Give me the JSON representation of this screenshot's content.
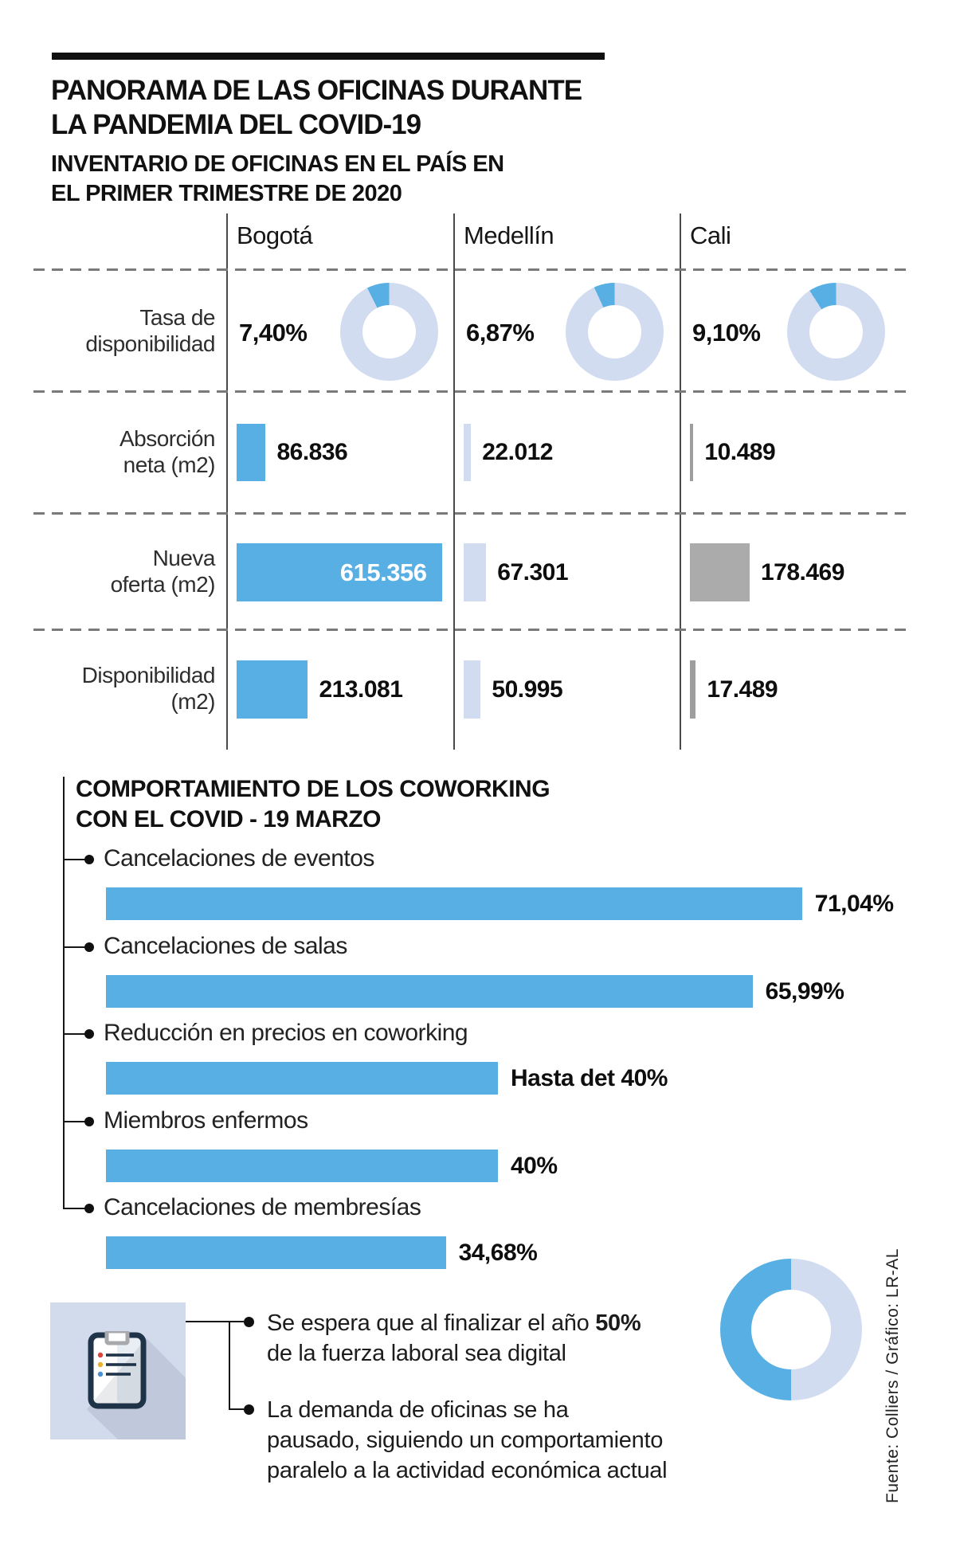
{
  "colors": {
    "blue": "#57AFE4",
    "light_blue": "#D2DCF1",
    "gray_bar": "#ABABAB",
    "gray_thin": "#9E9E9E",
    "dash": "#7A7A7A",
    "box_bg": "#D2DBEC"
  },
  "header": {
    "title": [
      "PANORAMA DE LAS OFICINAS DURANTE",
      "LA PANDEMIA DEL COVID-19"
    ],
    "subtitle": [
      "INVENTARIO DE OFICINAS EN EL PAÍS EN",
      "EL PRIMER TRIMESTRE DE 2020"
    ]
  },
  "inventory": {
    "columns": [
      "Bogotá",
      "Medellín",
      "Cali"
    ],
    "rows": [
      {
        "label": [
          "Tasa de",
          "disponibilidad"
        ],
        "display": [
          "7,40%",
          "6,87%",
          "9,10%"
        ],
        "pct": [
          7.4,
          6.87,
          9.1
        ]
      },
      {
        "label": [
          "Absorción",
          "neta (m2)"
        ],
        "display": [
          "86.836",
          "22.012",
          "10.489"
        ],
        "values": [
          86836,
          22012,
          10489
        ]
      },
      {
        "label": [
          "Nueva",
          "oferta (m2)"
        ],
        "display": [
          "615.356",
          "67.301",
          "178.469"
        ],
        "values": [
          615356,
          67301,
          178469
        ]
      },
      {
        "label": [
          "Disponibilidad",
          "(m2)"
        ],
        "display": [
          "213.081",
          "50.995",
          "17.489"
        ],
        "values": [
          213081,
          50995,
          17489
        ]
      }
    ]
  },
  "coworking": {
    "title": [
      "COMPORTAMIENTO DE LOS COWORKING",
      "CON EL COVID - 19 MARZO"
    ],
    "items": [
      {
        "label": "Cancelaciones de eventos",
        "display": "71,04%",
        "value": 71.04
      },
      {
        "label": "Cancelaciones de salas",
        "display": "65,99%",
        "value": 65.99
      },
      {
        "label": "Reducción en precios en coworking",
        "display": "Hasta det 40%",
        "value": 40
      },
      {
        "label": "Miembros enfermos",
        "display": "40%",
        "value": 40
      },
      {
        "label": "Cancelaciones de membresías",
        "display": "34,68%",
        "value": 34.68
      }
    ]
  },
  "notes": {
    "note1": {
      "line1_regular": "Se espera que al finalizar el año ",
      "line1_bold": "50%",
      "line2": "de la fuerza laboral sea digital"
    },
    "note2": [
      "La demanda de oficinas se ha",
      "pausado, siguiendo un comportamiento",
      "paralelo a la actividad económica actual"
    ]
  },
  "bottom_donut": {
    "values": [
      50,
      50
    ]
  },
  "source": "Fuente: Colliers / Gráfico: LR-AL",
  "chart_data": [
    {
      "type": "table",
      "title": "INVENTARIO DE OFICINAS EN EL PAÍS EN EL PRIMER TRIMESTRE DE 2020",
      "columns": [
        "Bogotá",
        "Medellín",
        "Cali"
      ],
      "rows": [
        {
          "label": "Tasa de disponibilidad",
          "values": [
            7.4,
            6.87,
            9.1
          ],
          "value_labels": [
            "7,40%",
            "6,87%",
            "9,10%"
          ],
          "viz": "donut"
        },
        {
          "label": "Absorción neta (m2)",
          "values": [
            86836,
            22012,
            10489
          ],
          "value_labels": [
            "86.836",
            "22.012",
            "10.489"
          ],
          "viz": "bar"
        },
        {
          "label": "Nueva oferta (m2)",
          "values": [
            615356,
            67301,
            178469
          ],
          "value_labels": [
            "615.356",
            "67.301",
            "178.469"
          ],
          "viz": "bar"
        },
        {
          "label": "Disponibilidad (m2)",
          "values": [
            213081,
            50995,
            17489
          ],
          "value_labels": [
            "213.081",
            "50.995",
            "17.489"
          ],
          "viz": "bar"
        }
      ]
    },
    {
      "type": "bar",
      "orientation": "horizontal",
      "title": "COMPORTAMIENTO DE LOS COWORKING CON EL COVID - 19 MARZO",
      "categories": [
        "Cancelaciones de eventos",
        "Cancelaciones de salas",
        "Reducción en precios en coworking",
        "Miembros enfermos",
        "Cancelaciones de membresías"
      ],
      "values": [
        71.04,
        65.99,
        40,
        40,
        34.68
      ],
      "value_labels": [
        "71,04%",
        "65,99%",
        "Hasta det 40%",
        "40%",
        "34,68%"
      ],
      "xlim": [
        0,
        85
      ],
      "grid": false
    },
    {
      "type": "pie",
      "title": "Se espera que al finalizar el año 50% de la fuerza laboral sea digital",
      "values": [
        50,
        50
      ],
      "legend_position": "none"
    }
  ]
}
